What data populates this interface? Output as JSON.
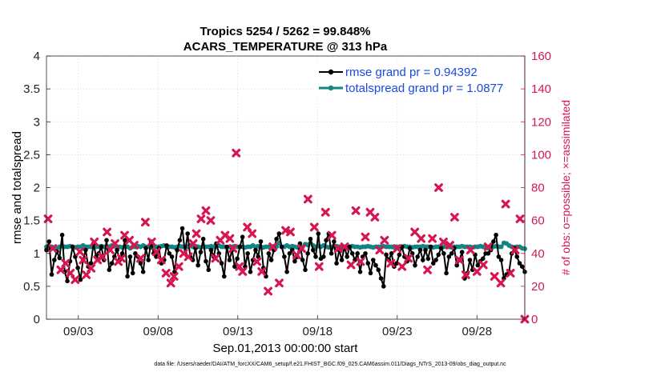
{
  "chart_data": {
    "type": "line",
    "title": "Tropics 5254 / 5262 = 99.848%",
    "subtitle": "ACARS_TEMPERATURE @ 313 hPa",
    "xlabel": "Sep.01,2013 00:00:00 start",
    "ylabel_left": "rmse and totalspread",
    "ylabel_right": "# of obs: o=possible; ×=assimilated",
    "footnote": "data file: /Users/raeder/DAI/ATM_forcXX/CAM6_setup/f.e21.FHIST_BGC.f09_025.CAM6assim.011/Diags_NTrS_2013-09/obs_diag_output.nc",
    "xlim": [
      1,
      31
    ],
    "ylim_left": [
      0,
      4
    ],
    "ylim_right": [
      0,
      160
    ],
    "x_ticks": [
      3,
      8,
      13,
      18,
      23,
      28
    ],
    "x_tick_labels": [
      "09/03",
      "09/08",
      "09/13",
      "09/18",
      "09/23",
      "09/28"
    ],
    "y_ticks_left": [
      "0",
      "0.5",
      "1",
      "1.5",
      "2",
      "2.5",
      "3",
      "3.5",
      "4"
    ],
    "y_ticks_right": [
      "0",
      "20",
      "40",
      "60",
      "80",
      "100",
      "120",
      "140",
      "160"
    ],
    "grid": true,
    "legend_position": "top-right",
    "series": [
      {
        "name": "rmse grand pr = 0.94392",
        "axis": "left",
        "color": "#000000",
        "marker": "dot",
        "values": [
          1.05,
          1.18,
          0.68,
          0.9,
          1.03,
          0.93,
          1.28,
          0.72,
          0.58,
          0.88,
          1.1,
          0.95,
          0.78,
          0.6,
          0.9,
          1.05,
          0.8,
          0.85,
          1.15,
          0.95,
          1.0,
          1.1,
          0.9,
          1.2,
          0.75,
          0.85,
          0.95,
          1.05,
          0.9,
          1.0,
          1.2,
          0.65,
          0.95,
          0.7,
          1.0,
          0.95,
          0.85,
          0.72,
          1.08,
          0.9,
          1.18,
          1.0,
          0.95,
          1.08,
          0.85,
          0.9,
          1.12,
          1.0,
          0.95,
          0.72,
          1.05,
          1.2,
          1.38,
          1.0,
          1.3,
          0.95,
          0.9,
          1.08,
          0.82,
          1.02,
          1.22,
          0.88,
          0.75,
          1.05,
          0.95,
          1.15,
          1.0,
          0.85,
          0.65,
          1.1,
          0.9,
          1.05,
          0.8,
          0.92,
          1.1,
          1.25,
          0.8,
          1.0,
          0.72,
          0.9,
          1.05,
          0.95,
          1.18,
          0.78,
          0.65,
          1.0,
          0.9,
          1.05,
          1.22,
          1.3,
          1.1,
          0.95,
          0.72,
          1.0,
          1.05,
          0.88,
          0.95,
          1.15,
          0.9,
          0.75,
          1.0,
          1.22,
          1.05,
          0.95,
          1.3,
          0.92,
          0.95,
          1.2,
          1.3,
          1.0,
          1.18,
          0.85,
          1.05,
          0.9,
          1.1,
          0.95,
          1.1,
          1.0,
          0.9,
          1.0,
          0.72,
          0.95,
          1.0,
          0.85,
          0.7,
          0.9,
          0.82,
          0.75,
          0.62,
          0.5,
          0.98,
          0.9,
          1.0,
          0.8,
          0.85,
          0.98,
          1.1,
          0.95,
          0.88,
          1.08,
          1.0,
          0.82,
          0.95,
          1.05,
          0.9,
          1.05,
          0.92,
          1.1,
          0.85,
          0.9,
          0.98,
          1.08,
          1.0,
          0.7,
          0.95,
          1.0,
          1.08,
          0.82,
          0.9,
          1.02,
          0.62,
          0.7,
          0.9,
          0.75,
          0.98,
          0.82,
          0.88,
          0.92,
          1.0,
          1.0,
          1.05,
          1.18,
          1.28,
          0.95,
          0.9,
          0.62,
          0.68,
          0.72,
          1.0,
          1.08,
          0.95,
          0.85,
          0.8,
          0.72
        ]
      },
      {
        "name": "totalspread grand pr = 1.0877",
        "axis": "left",
        "color": "#138483",
        "marker": "dot",
        "values": [
          1.1,
          1.08,
          1.1,
          1.09,
          1.08,
          1.1,
          1.11,
          1.1,
          1.1,
          1.11,
          1.1,
          1.09,
          1.1,
          1.1,
          1.12,
          1.1,
          1.1,
          1.1,
          1.09,
          1.1,
          1.1,
          1.11,
          1.1,
          1.1,
          1.1,
          1.12,
          1.11,
          1.1,
          1.1,
          1.09,
          1.1,
          1.1,
          1.08,
          1.1,
          1.1,
          1.11,
          1.1,
          1.12,
          1.1,
          1.1,
          1.09,
          1.1,
          1.1,
          1.1,
          1.11,
          1.12,
          1.1,
          1.1,
          1.1,
          1.09,
          1.1,
          1.11,
          1.1,
          1.1,
          1.1,
          1.12,
          1.1,
          1.11,
          1.1,
          1.09,
          1.1,
          1.1,
          1.1,
          1.11,
          1.1,
          1.1,
          1.12,
          1.1,
          1.1,
          1.09,
          1.1,
          1.1,
          1.11,
          1.1,
          1.1,
          1.1,
          1.09,
          1.1,
          1.1,
          1.12,
          1.1,
          1.11,
          1.1,
          1.09,
          1.1,
          1.1,
          1.1,
          1.11,
          1.1,
          1.16,
          1.1,
          1.1,
          1.12,
          1.1,
          1.11,
          1.1,
          1.09,
          1.1,
          1.1,
          1.14,
          1.13,
          1.16,
          1.12,
          1.1,
          1.11,
          1.1,
          1.12,
          1.1,
          1.09,
          1.1,
          1.1,
          1.11,
          1.1,
          1.1,
          1.09,
          1.1,
          1.1,
          1.11,
          1.1,
          1.1,
          1.09,
          1.1,
          1.1,
          1.11,
          1.1,
          1.09,
          1.1,
          1.1,
          1.1,
          1.11,
          1.1,
          1.1,
          1.1,
          1.09,
          1.1,
          1.1,
          1.1,
          1.11,
          1.1,
          1.1,
          1.09,
          1.1,
          1.1,
          1.1,
          1.11,
          1.1,
          1.1,
          1.1,
          1.09,
          1.1,
          1.1,
          1.11,
          1.1,
          1.12,
          1.1,
          1.09,
          1.1,
          1.1,
          1.1,
          1.11,
          1.1,
          1.1,
          1.1,
          1.09,
          1.1,
          1.1,
          1.11,
          1.1,
          1.1,
          1.08,
          1.1,
          1.1,
          1.11,
          1.1,
          1.1,
          1.16,
          1.15,
          1.12,
          1.1,
          1.09,
          1.1,
          1.1,
          1.08,
          1.07
        ]
      }
    ],
    "obs_possible": {
      "name": "# of obs possible",
      "axis": "right",
      "color": "#d6174f",
      "marker": "circle",
      "x": [
        31
      ],
      "values": [
        0
      ]
    },
    "obs_assimilated": {
      "name": "# of obs assimilated",
      "axis": "right",
      "color": "#d6174f",
      "marker": "x",
      "x": [
        1.1,
        1.4,
        1.9,
        2.2,
        2.5,
        2.8,
        3.1,
        3.3,
        3.5,
        3.8,
        4.0,
        4.2,
        4.5,
        4.8,
        5.0,
        5.3,
        5.5,
        5.7,
        5.9,
        6.2,
        6.5,
        6.9,
        7.2,
        7.6,
        7.9,
        8.2,
        8.5,
        8.8,
        9.0,
        9.3,
        9.6,
        9.9,
        10.2,
        10.4,
        10.7,
        11.0,
        11.3,
        11.6,
        11.9,
        12.2,
        12.5,
        12.7,
        12.9,
        13.1,
        13.3,
        13.6,
        13.9,
        14.2,
        14.5,
        14.9,
        15.2,
        15.6,
        16.0,
        16.3,
        16.7,
        17.0,
        17.4,
        17.8,
        18.1,
        18.5,
        18.9,
        19.3,
        19.7,
        20.1,
        20.4,
        20.7,
        21.0,
        21.3,
        21.6,
        21.9,
        22.2,
        22.6,
        23.0,
        23.3,
        23.7,
        24.1,
        24.5,
        24.9,
        25.2,
        25.6,
        25.9,
        26.3,
        26.6,
        26.9,
        27.3,
        27.6,
        28.0,
        28.4,
        28.7,
        29.1,
        29.5,
        29.8,
        30.1,
        30.4,
        30.7
      ],
      "values": [
        61,
        43,
        30,
        34,
        28,
        24,
        41,
        36,
        27,
        31,
        47,
        36,
        38,
        53,
        42,
        46,
        35,
        37,
        51,
        48,
        45,
        37,
        59,
        47,
        41,
        36,
        28,
        22,
        26,
        32,
        40,
        38,
        46,
        52,
        61,
        66,
        60,
        37,
        48,
        51,
        49,
        43,
        101,
        32,
        29,
        56,
        52,
        35,
        29,
        17,
        44,
        22,
        54,
        53,
        39,
        43,
        73,
        56,
        32,
        65,
        51,
        43,
        44,
        33,
        66,
        35,
        50,
        65,
        62,
        42,
        48,
        34,
        43,
        32,
        37,
        53,
        49,
        30,
        49,
        80,
        47,
        45,
        62,
        36,
        27,
        42,
        29,
        33,
        44,
        26,
        22,
        70,
        28,
        42,
        61
      ]
    }
  }
}
